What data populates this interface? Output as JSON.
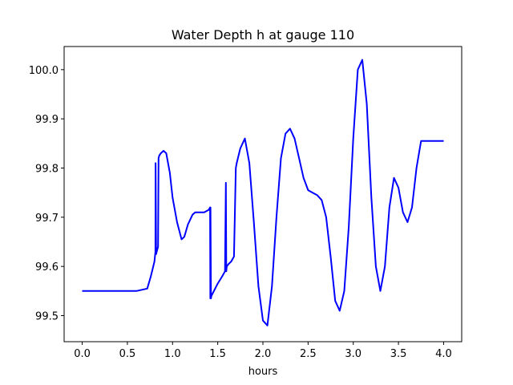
{
  "chart_data": {
    "type": "line",
    "title": "Water Depth h at gauge 110",
    "xlabel": "hours",
    "ylabel": "",
    "xlim": [
      -0.2,
      4.2
    ],
    "ylim": [
      99.447,
      100.047
    ],
    "xticks": [
      0.0,
      0.5,
      1.0,
      1.5,
      2.0,
      2.5,
      3.0,
      3.5,
      4.0
    ],
    "xtick_labels": [
      "0.0",
      "0.5",
      "1.0",
      "1.5",
      "2.0",
      "2.5",
      "3.0",
      "3.5",
      "4.0"
    ],
    "yticks": [
      99.5,
      99.6,
      99.7,
      99.8,
      99.9,
      100.0
    ],
    "ytick_labels": [
      "99.5",
      "99.6",
      "99.7",
      "99.8",
      "99.9",
      "100.0"
    ],
    "grid": false,
    "line_color": "#0000ff",
    "series": [
      {
        "x": [
          0.0,
          0.3,
          0.6,
          0.72,
          0.76,
          0.8,
          0.81,
          0.812,
          0.818,
          0.825,
          0.84,
          0.845,
          0.852,
          0.87,
          0.9,
          0.93,
          0.97,
          1.0,
          1.05,
          1.1,
          1.13,
          1.17,
          1.22,
          1.25,
          1.3,
          1.35,
          1.4,
          1.415,
          1.418,
          1.42,
          1.425,
          1.43,
          1.5,
          1.55,
          1.58,
          1.59,
          1.595,
          1.6,
          1.62,
          1.65,
          1.68,
          1.7,
          1.71,
          1.75,
          1.8,
          1.85,
          1.9,
          1.95,
          2.0,
          2.05,
          2.1,
          2.15,
          2.2,
          2.25,
          2.3,
          2.35,
          2.4,
          2.45,
          2.5,
          2.55,
          2.6,
          2.65,
          2.7,
          2.75,
          2.8,
          2.85,
          2.9,
          2.95,
          3.0,
          3.05,
          3.1,
          3.15,
          3.2,
          3.25,
          3.3,
          3.35,
          3.4,
          3.45,
          3.5,
          3.55,
          3.6,
          3.65,
          3.7,
          3.75,
          3.8,
          3.85,
          3.9,
          3.95,
          4.0
        ],
        "y": [
          99.55,
          99.55,
          99.55,
          99.555,
          99.58,
          99.61,
          99.63,
          99.81,
          99.625,
          99.63,
          99.64,
          99.82,
          99.825,
          99.83,
          99.835,
          99.83,
          99.79,
          99.74,
          99.69,
          99.655,
          99.66,
          99.685,
          99.705,
          99.71,
          99.71,
          99.71,
          99.715,
          99.72,
          99.535,
          99.72,
          99.535,
          99.54,
          99.565,
          99.58,
          99.59,
          99.77,
          99.59,
          99.6,
          99.605,
          99.61,
          99.62,
          99.8,
          99.81,
          99.84,
          99.86,
          99.81,
          99.69,
          99.56,
          99.49,
          99.48,
          99.56,
          99.7,
          99.82,
          99.87,
          99.88,
          99.86,
          99.82,
          99.78,
          99.755,
          99.75,
          99.745,
          99.735,
          99.7,
          99.62,
          99.53,
          99.51,
          99.55,
          99.68,
          99.86,
          100.0,
          100.02,
          99.93,
          99.74,
          99.6,
          99.55,
          99.6,
          99.72,
          99.78,
          99.76,
          99.71,
          99.69,
          99.72,
          99.8,
          99.855,
          99.855,
          99.855,
          99.855,
          99.855,
          99.855
        ]
      }
    ]
  }
}
